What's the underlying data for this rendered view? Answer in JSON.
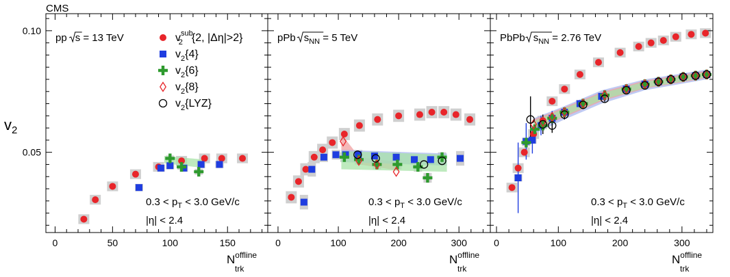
{
  "experiment_label": "CMS",
  "y_axis": {
    "label_main": "v",
    "label_sub": "2",
    "ticks": [
      "0.05",
      "0.10"
    ],
    "tick_values": [
      0.05,
      0.1
    ],
    "ylim": [
      0.017,
      0.107
    ]
  },
  "legend": [
    {
      "key": "sub",
      "main": "v",
      "sub": "2",
      "sup": "sub",
      "rest": "{2, |Δη|>2}",
      "color": "#e8252a",
      "marker": "circle"
    },
    {
      "key": "c4",
      "main": "v",
      "sub": "2",
      "sup": "",
      "rest": "{4}",
      "color": "#1f3de0",
      "marker": "square"
    },
    {
      "key": "c6",
      "main": "v",
      "sub": "2",
      "sup": "",
      "rest": "{6}",
      "color": "#2e9a2e",
      "marker": "cross"
    },
    {
      "key": "c8",
      "main": "v",
      "sub": "2",
      "sup": "",
      "rest": "{8}",
      "color": "#e8252a",
      "marker": "diamond"
    },
    {
      "key": "lyz",
      "main": "v",
      "sub": "2",
      "sup": "",
      "rest": "{LYZ}",
      "color": "#000000",
      "marker": "open-circle"
    }
  ],
  "colors": {
    "syst_box": "#cfcfcf",
    "band_red": "#f0a0a0",
    "band_blue": "#a9b8ef",
    "band_green": "#a8e3a8"
  },
  "chart_data": [
    {
      "type": "scatter",
      "panel": "pp",
      "title_prefix": "pp",
      "title_energy": "s",
      "title_sub": "",
      "title_suffix": " = 13 TeV",
      "cut_pt_a": "0.3 < p",
      "cut_pt_sub": "T",
      "cut_pt_b": " < 3.0 GeV/c",
      "cut_eta": "|η| < 2.4",
      "xlabel_main": "N",
      "xlabel_sup": "offline",
      "xlabel_sub": "trk",
      "xlim": [
        -8,
        185
      ],
      "xticks": [
        0,
        50,
        100,
        150
      ],
      "xtick_labels": [
        "0",
        "50",
        "100",
        "150"
      ],
      "ylim": [
        0.017,
        0.107
      ],
      "series": [
        {
          "key": "sub",
          "x": [
            25,
            35,
            50,
            70,
            90,
            110,
            130,
            145,
            163
          ],
          "y": [
            0.0225,
            0.0305,
            0.036,
            0.041,
            0.044,
            0.0465,
            0.0475,
            0.0475,
            0.0475
          ],
          "syst": [
            0.002,
            0.002,
            0.002,
            0.002,
            0.002,
            0.002,
            0.002,
            0.002,
            0.002
          ]
        },
        {
          "key": "c4",
          "x": [
            73,
            92,
            100,
            112,
            127,
            143
          ],
          "y": [
            0.0355,
            0.0435,
            0.0445,
            0.0435,
            0.045,
            0.045
          ],
          "syst": [
            0.0015,
            0.0015,
            0.0015,
            0.0015,
            0.0015,
            0.0015
          ]
        },
        {
          "key": "c6",
          "x": [
            100,
            110,
            125
          ],
          "y": [
            0.0475,
            0.044,
            0.042
          ],
          "syst": [
            0.0012,
            0.0012,
            0.0012
          ]
        }
      ],
      "bands": [
        {
          "key": "c6",
          "x": [
            95,
            130
          ],
          "low": [
            0.0455,
            0.0435
          ],
          "high": [
            0.0485,
            0.047
          ]
        }
      ]
    },
    {
      "type": "scatter",
      "panel": "pPb",
      "title_prefix": "pPb",
      "title_energy": "s",
      "title_sub": "NN",
      "title_suffix": " = 5 TeV",
      "cut_pt_a": "0.3 < p",
      "cut_pt_sub": "T",
      "cut_pt_b": " < 3.0 GeV/c",
      "cut_eta": "|η| < 2.4",
      "xlabel_main": "N",
      "xlabel_sup": "offline",
      "xlabel_sub": "trk",
      "xlim": [
        -17,
        352
      ],
      "xticks": [
        0,
        100,
        200,
        300
      ],
      "xtick_labels": [
        "0",
        "100",
        "200",
        "300"
      ],
      "ylim": [
        0.017,
        0.107
      ],
      "series": [
        {
          "key": "sub",
          "x": [
            22,
            34,
            46,
            60,
            74,
            90,
            110,
            135,
            165,
            200,
            235,
            255,
            275,
            295,
            318
          ],
          "y": [
            0.0315,
            0.038,
            0.043,
            0.048,
            0.051,
            0.054,
            0.0575,
            0.061,
            0.0635,
            0.065,
            0.0655,
            0.0665,
            0.0665,
            0.0655,
            0.0635
          ],
          "syst": [
            0.0025,
            0.0025,
            0.0025,
            0.0025,
            0.0025,
            0.0025,
            0.0025,
            0.0025,
            0.0025,
            0.0025,
            0.0025,
            0.0025,
            0.0025,
            0.0025,
            0.0025
          ]
        },
        {
          "key": "c4",
          "x": [
            43,
            56,
            76,
            96,
            112,
            133,
            160,
            196,
            226,
            253,
            302
          ],
          "y": [
            0.0295,
            0.043,
            0.048,
            0.049,
            0.049,
            0.049,
            0.0485,
            0.048,
            0.047,
            0.047,
            0.0475
          ],
          "syst": [
            0.003,
            0.003,
            0.002,
            0.002,
            0.002,
            0.002,
            0.002,
            0.002,
            0.002,
            0.002,
            0.003
          ]
        },
        {
          "key": "c6",
          "x": [
            110,
            134,
            164,
            198,
            232,
            248,
            272
          ],
          "y": [
            0.048,
            0.047,
            0.045,
            0.045,
            0.044,
            0.0395,
            0.048
          ],
          "syst": [
            0.002,
            0.002,
            0.002,
            0.002,
            0.002,
            0.002,
            0.002
          ]
        },
        {
          "key": "c8",
          "x": [
            108,
            134,
            164,
            196
          ],
          "y": [
            0.0545,
            0.0465,
            0.045,
            0.042
          ],
          "syst": [
            0,
            0,
            0,
            0
          ]
        },
        {
          "key": "lyz",
          "x": [
            132,
            162,
            242,
            272
          ],
          "y": [
            0.049,
            0.0475,
            0.045,
            0.0465
          ],
          "syst": [
            0,
            0,
            0,
            0
          ]
        }
      ],
      "bands": [
        {
          "key": "c8",
          "x": [
            105,
            135,
            200
          ],
          "low": [
            0.0505,
            0.045,
            0.0425
          ],
          "high": [
            0.0575,
            0.048,
            0.046
          ]
        },
        {
          "key": "c4",
          "x": [
            105,
            280
          ],
          "low": [
            0.046,
            0.0445
          ],
          "high": [
            0.051,
            0.0495
          ]
        },
        {
          "key": "c6",
          "x": [
            105,
            280
          ],
          "low": [
            0.043,
            0.042
          ],
          "high": [
            0.0505,
            0.049
          ]
        }
      ]
    },
    {
      "type": "scatter",
      "panel": "PbPb",
      "title_prefix": "PbPb",
      "title_energy": "s",
      "title_sub": "NN",
      "title_suffix": " = 2.76 TeV",
      "cut_pt_a": "0.3 < p",
      "cut_pt_sub": "T",
      "cut_pt_b": " < 3.0 GeV/c",
      "cut_eta": "|η| < 2.4",
      "xlabel_main": "N",
      "xlabel_sup": "offline",
      "xlabel_sub": "trk",
      "xlim": [
        -10,
        350
      ],
      "xticks": [
        0,
        100,
        200,
        300
      ],
      "xtick_labels": [
        "0",
        "100",
        "200",
        "300"
      ],
      "ylim": [
        0.017,
        0.107
      ],
      "series": [
        {
          "key": "sub",
          "x": [
            25,
            35,
            45,
            60,
            75,
            90,
            110,
            135,
            165,
            200,
            230,
            250,
            270,
            290,
            315,
            338
          ],
          "y": [
            0.0355,
            0.0435,
            0.05,
            0.0575,
            0.063,
            0.071,
            0.076,
            0.082,
            0.087,
            0.091,
            0.0935,
            0.095,
            0.096,
            0.0975,
            0.0985,
            0.099
          ],
          "syst": [
            0.002,
            0.002,
            0.002,
            0.002,
            0.002,
            0.002,
            0.002,
            0.002,
            0.002,
            0.002,
            0.002,
            0.002,
            0.002,
            0.002,
            0.002,
            0.002
          ]
        },
        {
          "key": "c4",
          "x": [
            35,
            48,
            58,
            72,
            90,
            110,
            135,
            170,
            210,
            240,
            262,
            282,
            302,
            322,
            340
          ],
          "y": [
            0.0395,
            0.0545,
            0.055,
            0.061,
            0.064,
            0.0665,
            0.07,
            0.073,
            0.076,
            0.078,
            0.079,
            0.08,
            0.081,
            0.0815,
            0.082
          ],
          "syst": [
            0.0015,
            0.0015,
            0.0015,
            0.0015,
            0.0015,
            0.0015,
            0.0015,
            0.0015,
            0.0015,
            0.0015,
            0.0015,
            0.0015,
            0.0015,
            0.0015,
            0.0015
          ],
          "err": [
            0.0145,
            0.0075,
            0.0055,
            0.004,
            0.003,
            0.002,
            0.0015,
            0.0012,
            0.001,
            0.001,
            0.001,
            0.001,
            0.001,
            0.001,
            0.001
          ]
        },
        {
          "key": "c6",
          "x": [
            48,
            62,
            75,
            90,
            110,
            140,
            175,
            210,
            240,
            262,
            282,
            302,
            322,
            340
          ],
          "y": [
            0.054,
            0.0595,
            0.061,
            0.064,
            0.0665,
            0.07,
            0.0735,
            0.076,
            0.078,
            0.079,
            0.08,
            0.081,
            0.0815,
            0.082
          ],
          "syst": [
            0.0015,
            0.0015,
            0.0015,
            0.0015,
            0.0015,
            0.0015,
            0.0015,
            0.0015,
            0.0015,
            0.0015,
            0.0015,
            0.0015,
            0.0015,
            0.0015
          ]
        },
        {
          "key": "c8",
          "x": [
            60,
            75,
            90,
            110,
            140,
            175,
            210,
            240,
            262,
            282,
            302,
            322,
            340
          ],
          "y": [
            0.0615,
            0.0625,
            0.0645,
            0.0665,
            0.07,
            0.0735,
            0.076,
            0.078,
            0.079,
            0.08,
            0.081,
            0.0815,
            0.082
          ],
          "syst": [
            0,
            0,
            0,
            0,
            0,
            0,
            0,
            0,
            0,
            0,
            0,
            0,
            0
          ]
        },
        {
          "key": "lyz",
          "x": [
            55,
            75,
            90,
            110,
            140,
            175,
            210,
            240,
            262,
            282,
            302,
            322,
            340
          ],
          "y": [
            0.0635,
            0.0615,
            0.061,
            0.0655,
            0.0695,
            0.072,
            0.0755,
            0.0775,
            0.079,
            0.08,
            0.081,
            0.0815,
            0.082
          ],
          "syst": [
            0,
            0,
            0,
            0,
            0,
            0,
            0,
            0,
            0,
            0,
            0,
            0,
            0
          ],
          "err": [
            0.0095,
            0.004,
            0.003,
            0.002,
            0.0015,
            0.0012,
            0.001,
            0.001,
            0.001,
            0.001,
            0.001,
            0.001,
            0.001
          ]
        }
      ],
      "bands": [
        {
          "key": "c4",
          "x": [
            60,
            110,
            170,
            240,
            340
          ],
          "low": [
            0.0575,
            0.0635,
            0.07,
            0.0755,
            0.08
          ],
          "high": [
            0.064,
            0.069,
            0.0755,
            0.08,
            0.084
          ]
        },
        {
          "key": "c8",
          "x": [
            60,
            110,
            170,
            240,
            340
          ],
          "low": [
            0.059,
            0.0645,
            0.071,
            0.0762,
            0.0805
          ],
          "high": [
            0.0635,
            0.0685,
            0.0748,
            0.0795,
            0.0835
          ]
        },
        {
          "key": "c6",
          "x": [
            60,
            110,
            170,
            240,
            340
          ],
          "low": [
            0.0598,
            0.065,
            0.0715,
            0.0765,
            0.0808
          ],
          "high": [
            0.0628,
            0.068,
            0.0743,
            0.079,
            0.083
          ]
        }
      ]
    }
  ]
}
